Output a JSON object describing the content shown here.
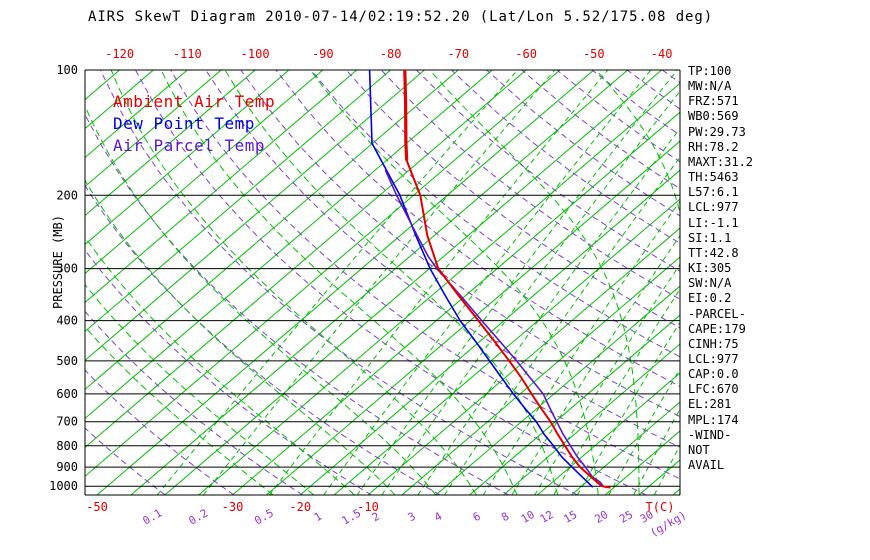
{
  "title": "AIRS SkewT Diagram 2010-07-14/02:19:52.20 (Lat/Lon 5.52/175.08 deg)",
  "legend": [
    {
      "label": "Ambient Air Temp",
      "color": "#e00000"
    },
    {
      "label": "Dew Point Temp",
      "color": "#0000dd"
    },
    {
      "label": "Air Parcel Temp",
      "color": "#5b16cc"
    }
  ],
  "axes": {
    "pressure_label": "PRESSURE (MB)",
    "pressure_ticks": [
      100,
      200,
      300,
      400,
      500,
      600,
      700,
      800,
      900,
      1000
    ],
    "top_ticks": [
      -120,
      -110,
      -100,
      -90,
      -80,
      -70,
      -60,
      -50,
      -40
    ],
    "bottom_temp_ticks": [
      -50,
      -30,
      -20,
      -10
    ],
    "temp_unit": "T(C)",
    "mixing_ticks": [
      0.1,
      0.2,
      0.5,
      1,
      1.5,
      2,
      3,
      4,
      6,
      8,
      10,
      12,
      15,
      20,
      25,
      30
    ],
    "mixing_unit": "(g/kg)"
  },
  "right_panel": {
    "lines": [
      "TP:100",
      "MW:N/A",
      "FRZ:571",
      "WB0:569",
      "PW:29.73",
      "RH:78.2",
      "MAXT:31.2",
      "TH:5463",
      "L57:6.1",
      "LCL:977",
      "LI:-1.1",
      "SI:1.1",
      "TT:42.8",
      "KI:305",
      "SW:N/A",
      "EI:0.2",
      "-PARCEL-",
      "CAPE:179",
      "CINH:75",
      "LCL:977",
      "CAP:0.0",
      "LFC:670",
      "EL:281",
      "MPL:174",
      "-WIND-",
      "NOT",
      "AVAIL"
    ]
  },
  "colors": {
    "isotherm": "#00c000",
    "moist_adiabat": "#00c000",
    "mixing_line": "#00c000",
    "dry_adiabat": "#8040d0",
    "mixing_label": "#9b30d9",
    "temp_label": "#e00000",
    "frame": "#000000"
  },
  "chart_data": {
    "type": "line",
    "title": "AIRS SkewT Diagram 2010-07-14/02:19:52.20 (Lat/Lon 5.52/175.08 deg)",
    "x_axis": {
      "label": "Temperature (C)",
      "top_range": [
        -120,
        -40
      ],
      "surface_range": [
        -52,
        36
      ]
    },
    "y_axis": {
      "label": "PRESSURE (MB)",
      "range": [
        100,
        1050
      ],
      "scale": "log"
    },
    "legend_position": "upper-left",
    "grid": {
      "isotherms_c": {
        "min": -130,
        "max": 45,
        "step": 5
      },
      "dry_adiabats_k": {
        "min": 230,
        "max": 450,
        "step": 10
      },
      "moist_adiabats_start_c": [
        -24,
        -18,
        -12,
        -6,
        0,
        6,
        12,
        18,
        24,
        30,
        36
      ]
    },
    "series": [
      {
        "name": "Ambient Air Temp",
        "color": "#e00000",
        "points": [
          [
            100,
            -77.9
          ],
          [
            120,
            -72.1
          ],
          [
            150,
            -65.1
          ],
          [
            165,
            -62.0
          ],
          [
            200,
            -54.0
          ],
          [
            250,
            -46.0
          ],
          [
            300,
            -38.7
          ],
          [
            350,
            -30.8
          ],
          [
            400,
            -23.8
          ],
          [
            450,
            -17.7
          ],
          [
            500,
            -12.3
          ],
          [
            550,
            -7.5
          ],
          [
            600,
            -3.3
          ],
          [
            650,
            0.6
          ],
          [
            700,
            4.3
          ],
          [
            750,
            7.5
          ],
          [
            800,
            10.6
          ],
          [
            850,
            13.5
          ],
          [
            900,
            16.5
          ],
          [
            950,
            19.8
          ],
          [
            1000,
            23.0
          ],
          [
            1008,
            24.5
          ]
        ]
      },
      {
        "name": "Dew Point Temp",
        "color": "#0000dd",
        "points": [
          [
            100,
            -83.1
          ],
          [
            150,
            -70.1
          ],
          [
            200,
            -57.0
          ],
          [
            250,
            -47.7
          ],
          [
            300,
            -39.9
          ],
          [
            350,
            -32.8
          ],
          [
            400,
            -26.5
          ],
          [
            450,
            -20.5
          ],
          [
            500,
            -15.2
          ],
          [
            550,
            -10.4
          ],
          [
            600,
            -6.0
          ],
          [
            650,
            -1.8
          ],
          [
            700,
            2.2
          ],
          [
            750,
            5.5
          ],
          [
            800,
            8.9
          ],
          [
            850,
            12.0
          ],
          [
            900,
            15.3
          ],
          [
            950,
            18.5
          ],
          [
            1000,
            21.5
          ],
          [
            1005,
            21.8
          ]
        ]
      },
      {
        "name": "Air Parcel Temp",
        "color": "#5b16cc",
        "points": [
          [
            174,
            -63.5
          ],
          [
            200,
            -57.5
          ],
          [
            250,
            -47.5
          ],
          [
            281,
            -42.2
          ],
          [
            300,
            -38.9
          ],
          [
            350,
            -30.5
          ],
          [
            400,
            -23.3
          ],
          [
            450,
            -16.9
          ],
          [
            500,
            -11.2
          ],
          [
            550,
            -6.2
          ],
          [
            600,
            -1.6
          ],
          [
            650,
            1.9
          ],
          [
            700,
            5.2
          ],
          [
            750,
            8.3
          ],
          [
            800,
            11.4
          ],
          [
            850,
            14.3
          ],
          [
            900,
            17.3
          ],
          [
            950,
            20.0
          ],
          [
            977,
            22.0
          ],
          [
            1000,
            23.2
          ],
          [
            1008,
            24.0
          ]
        ]
      }
    ]
  }
}
